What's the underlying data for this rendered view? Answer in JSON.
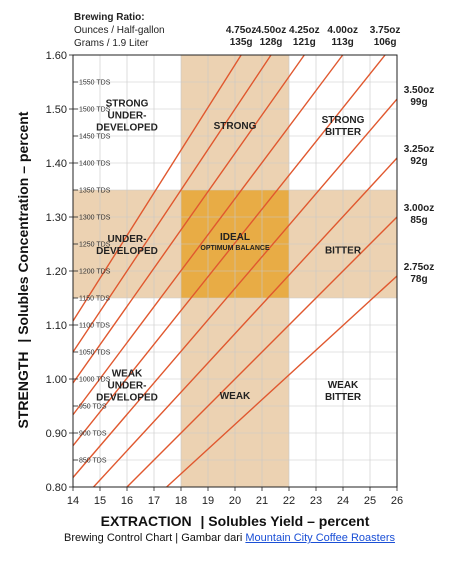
{
  "header": {
    "ratio_title": "Brewing Ratio:",
    "ratio_line1": "Ounces / Half-gallon",
    "ratio_line2": "Grams / 1.9 Liter"
  },
  "caption": {
    "text": "Brewing Control Chart | Gambar dari ",
    "link_text": "Mountain City Coffee Roasters"
  },
  "colors": {
    "band": "#ecd2b2",
    "overlap": "#e8ac45",
    "ratio_line": "#e0582f",
    "grid": "#c8c8c8",
    "caption_link": "#1a4fd6"
  },
  "chart_data": {
    "type": "line",
    "title": "",
    "xlabel_bold": "EXTRACTION",
    "xlabel_rest": "| Solubles Yield – percent",
    "ylabel_bold": "STRENGTH",
    "ylabel_rest": "| Solubles Concentration – percent",
    "xlim": [
      14,
      26
    ],
    "ylim": [
      0.8,
      1.6
    ],
    "x_ticks": [
      "14",
      "15",
      "16",
      "17",
      "18",
      "19",
      "20",
      "21",
      "22",
      "23",
      "24",
      "25",
      "26"
    ],
    "y_ticks": [
      "0.80",
      "0.90",
      "1.00",
      "1.10",
      "1.20",
      "1.30",
      "1.40",
      "1.50",
      "1.60"
    ],
    "tds_labels": [
      {
        "value": 850,
        "label": "850 TDS"
      },
      {
        "value": 900,
        "label": "900 TDS"
      },
      {
        "value": 950,
        "label": "950 TDS"
      },
      {
        "value": 1000,
        "label": "1000 TDS"
      },
      {
        "value": 1050,
        "label": "1050 TDS"
      },
      {
        "value": 1100,
        "label": "1100 TDS"
      },
      {
        "value": 1150,
        "label": "1150 TDS"
      },
      {
        "value": 1200,
        "label": "1200 TDS"
      },
      {
        "value": 1250,
        "label": "1250 TDS"
      },
      {
        "value": 1300,
        "label": "1300 TDS"
      },
      {
        "value": 1350,
        "label": "1350 TDS"
      },
      {
        "value": 1400,
        "label": "1400 TDS"
      },
      {
        "value": 1450,
        "label": "1450 TDS"
      },
      {
        "value": 1500,
        "label": "1500 TDS"
      },
      {
        "value": 1550,
        "label": "1550 TDS"
      }
    ],
    "ideal_extraction": [
      18,
      22
    ],
    "ideal_strength": [
      1.15,
      1.35
    ],
    "ratio_lines": [
      {
        "oz": "4.75oz",
        "g": "135g",
        "k": 0.0791
      },
      {
        "oz": "4.50oz",
        "g": "128g",
        "k": 0.075
      },
      {
        "oz": "4.25oz",
        "g": "121g",
        "k": 0.0709
      },
      {
        "oz": "4.00oz",
        "g": "113g",
        "k": 0.0667
      },
      {
        "oz": "3.75oz",
        "g": "106g",
        "k": 0.0626
      },
      {
        "oz": "3.50oz",
        "g": "99g",
        "k": 0.0584
      },
      {
        "oz": "3.25oz",
        "g": "92g",
        "k": 0.0542
      },
      {
        "oz": "3.00oz",
        "g": "85g",
        "k": 0.05
      },
      {
        "oz": "2.75oz",
        "g": "78g",
        "k": 0.0458
      }
    ],
    "zones": [
      {
        "lines": [
          "STRONG",
          "UNDER-",
          "DEVELOPED"
        ],
        "x": 16,
        "y": 1.49
      },
      {
        "lines": [
          "STRONG"
        ],
        "x": 20,
        "y": 1.47
      },
      {
        "lines": [
          "STRONG",
          "BITTER"
        ],
        "x": 24,
        "y": 1.47
      },
      {
        "lines": [
          "UNDER-",
          "DEVELOPED"
        ],
        "x": 16,
        "y": 1.25
      },
      {
        "lines": [
          "IDEAL"
        ],
        "x": 20,
        "y": 1.265
      },
      {
        "lines": [
          "BITTER"
        ],
        "x": 24,
        "y": 1.24
      },
      {
        "lines": [
          "WEAK",
          "UNDER-",
          "DEVELOPED"
        ],
        "x": 16,
        "y": 0.99
      },
      {
        "lines": [
          "WEAK"
        ],
        "x": 20,
        "y": 0.97
      },
      {
        "lines": [
          "WEAK",
          "BITTER"
        ],
        "x": 24,
        "y": 0.98
      }
    ],
    "ideal_sub": "OPTIMUM BALANCE"
  }
}
